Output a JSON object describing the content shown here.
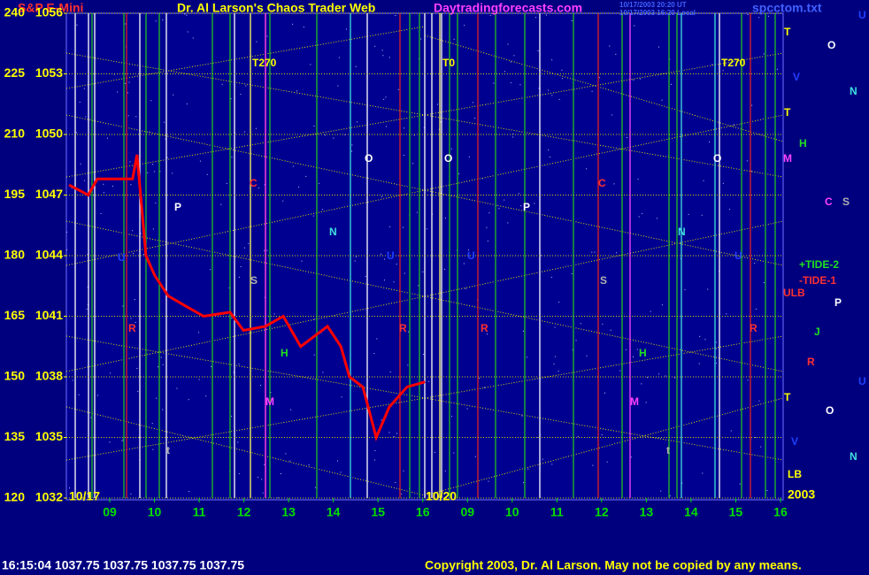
{
  "header": {
    "symbol": "S&P E-Mini",
    "title": "Dr. Al Larson's Chaos Trader Web",
    "site": "Daytradingforecasts.com",
    "stamp_ut": "10/17/2003 20:20 UT",
    "stamp_local": "10/17/2003 16:20 Local",
    "file": "spcctom.txt"
  },
  "footer": {
    "quote": "16:15:04 1037.75 1037.75 1037.75 1037.75",
    "copyright": "Copyright 2003, Dr. Al Larson. May not be copied by any means."
  },
  "chart_data": {
    "type": "line",
    "dates": [
      "10/17",
      "10/20",
      "2003"
    ],
    "xlim": [
      8.03,
      24.06
    ],
    "xticks": [
      {
        "value": 9,
        "label": "09"
      },
      10,
      11,
      12,
      13,
      14,
      15,
      16,
      {
        "value": 17,
        "label": "09"
      },
      {
        "value": 18,
        "label": "10"
      },
      {
        "value": 19,
        "label": "11"
      },
      {
        "value": 20,
        "label": "12"
      },
      {
        "value": 21,
        "label": "13"
      },
      {
        "value": 22,
        "label": "14"
      },
      {
        "value": 23,
        "label": "15"
      },
      {
        "value": 24,
        "label": "16"
      }
    ],
    "ylim": [
      1032,
      1056
    ],
    "yticks": [
      1032,
      1035,
      1038,
      1041,
      1044,
      1047,
      1050,
      1053,
      1056
    ],
    "y2lim": [
      120,
      240
    ],
    "y2ticks": [
      120,
      135,
      150,
      165,
      180,
      195,
      210,
      225,
      240
    ],
    "grid": true,
    "series": [
      {
        "color": "#ff0000",
        "x": [
          8.09,
          8.52,
          8.72,
          9.51,
          9.61,
          9.81,
          10.01,
          10.31,
          10.7,
          11.1,
          11.69,
          11.99,
          12.48,
          12.88,
          13.27,
          13.87,
          14.17,
          14.36,
          14.66,
          14.96,
          15.25,
          15.65,
          16.05
        ],
        "values": [
          1047.5,
          1047,
          1047.8,
          1047.8,
          1049,
          1044,
          1043,
          1042,
          1041.5,
          1041,
          1041.2,
          1040.3,
          1040.5,
          1041,
          1039.5,
          1040.5,
          1039.5,
          1038,
          1037.5,
          1035,
          1036.5,
          1037.5,
          1037.75
        ]
      }
    ],
    "annotations": [
      "T270",
      "T0",
      "T270",
      "O",
      "O",
      "O",
      "C",
      "C",
      "P",
      "P",
      "N",
      "N",
      "U",
      "U",
      "U",
      "U",
      "S",
      "S",
      "R",
      "R",
      "R",
      "R",
      "H",
      "H",
      "M",
      "M",
      "t",
      "t",
      "T",
      "O",
      "U",
      "V",
      "N",
      "T",
      "H",
      "M",
      "C",
      "S",
      "+TIDE-2",
      "-TIDE-1",
      "ULB",
      "P",
      "J",
      "R",
      "U",
      "T",
      "O",
      "V",
      "N",
      "LB"
    ]
  }
}
